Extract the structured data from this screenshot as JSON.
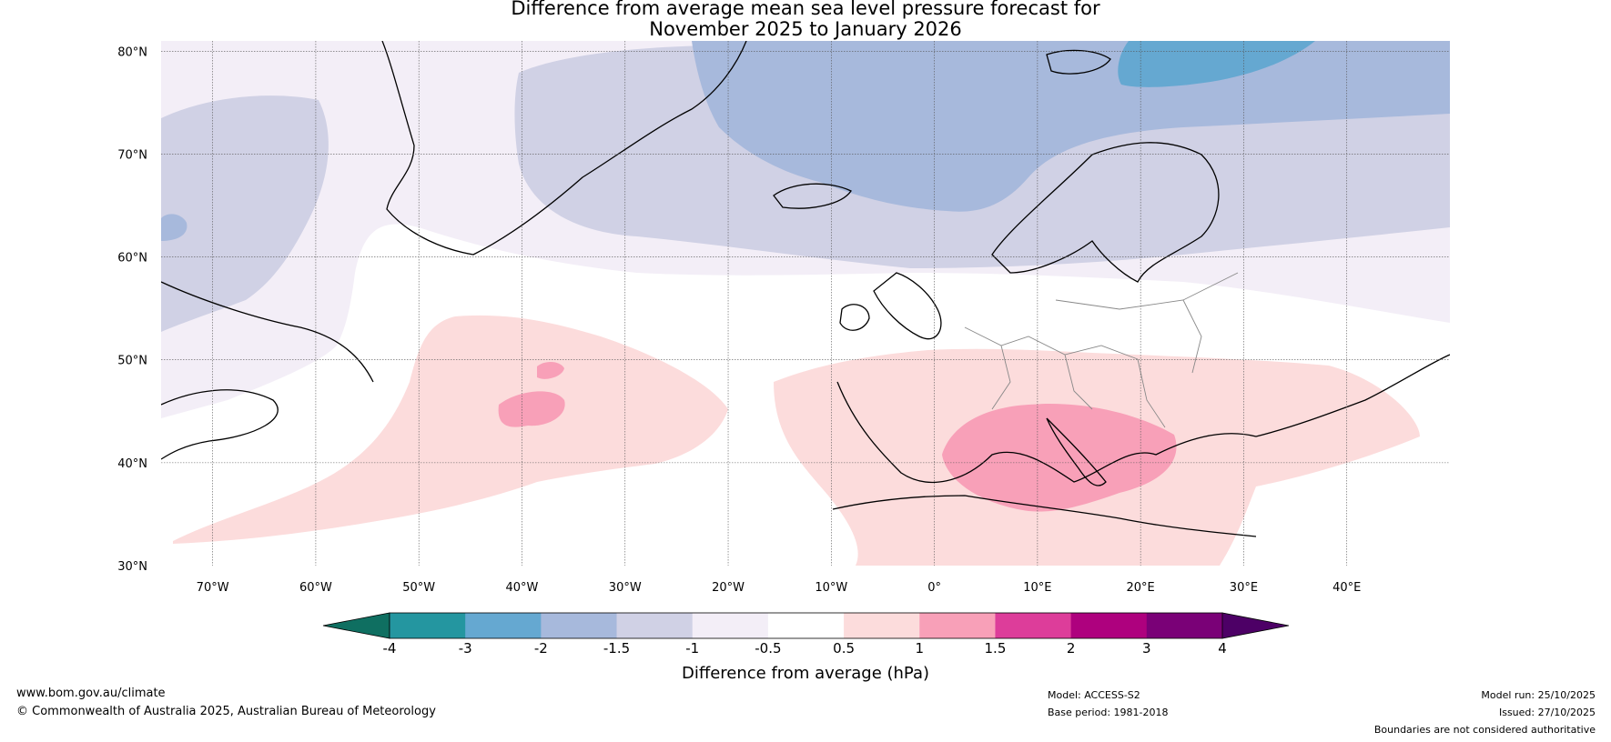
{
  "header": {
    "title_line1": "Difference from average mean sea level pressure forecast for",
    "title_line2": "November 2025 to January 2026"
  },
  "map": {
    "lat_labels": [
      "80°N",
      "70°N",
      "60°N",
      "50°N",
      "40°N",
      "30°N"
    ],
    "lon_labels": [
      "70°W",
      "60°W",
      "50°W",
      "40°W",
      "30°W",
      "20°W",
      "10°W",
      "0°",
      "10°E",
      "20°E",
      "30°E",
      "40°E"
    ],
    "extent": {
      "lon_min": -75,
      "lon_max": 50,
      "lat_min": 30,
      "lat_max": 81
    }
  },
  "legend": {
    "title": "Difference from average (hPa)",
    "tick_labels": [
      "-4",
      "-3",
      "-2",
      "-1.5",
      "-1",
      "-0.5",
      "0.5",
      "1",
      "1.5",
      "2",
      "3",
      "4"
    ],
    "colors": {
      "below_-4": "#0f6f61",
      "-4_to_-3": "#2496a0",
      "-3_to_-2": "#65a8d1",
      "-2_to_-1.5": "#a7b9dc",
      "-1.5_to_-1": "#d0d1e5",
      "-1_to_-0.5": "#f3eef7",
      "-0.5_to_0.5": "#ffffff",
      "0.5_to_1": "#fcdcdc",
      "1_to_1.5": "#f8a0b8",
      "1.5_to_2": "#dd3d9a",
      "2_to_3": "#ae017e",
      "3_to_4": "#7a0177",
      "above_4": "#4d0066"
    }
  },
  "footer": {
    "website": "www.bom.gov.au/climate",
    "copyright": "© Commonwealth of Australia 2025, Australian Bureau of Meteorology",
    "model": "Model: ACCESS-S2",
    "base_period": "Base period: 1981-2018",
    "model_run": "Model run: 25/10/2025",
    "issued": "Issued: 27/10/2025",
    "disclaimer": "Boundaries are not considered authoritative"
  }
}
